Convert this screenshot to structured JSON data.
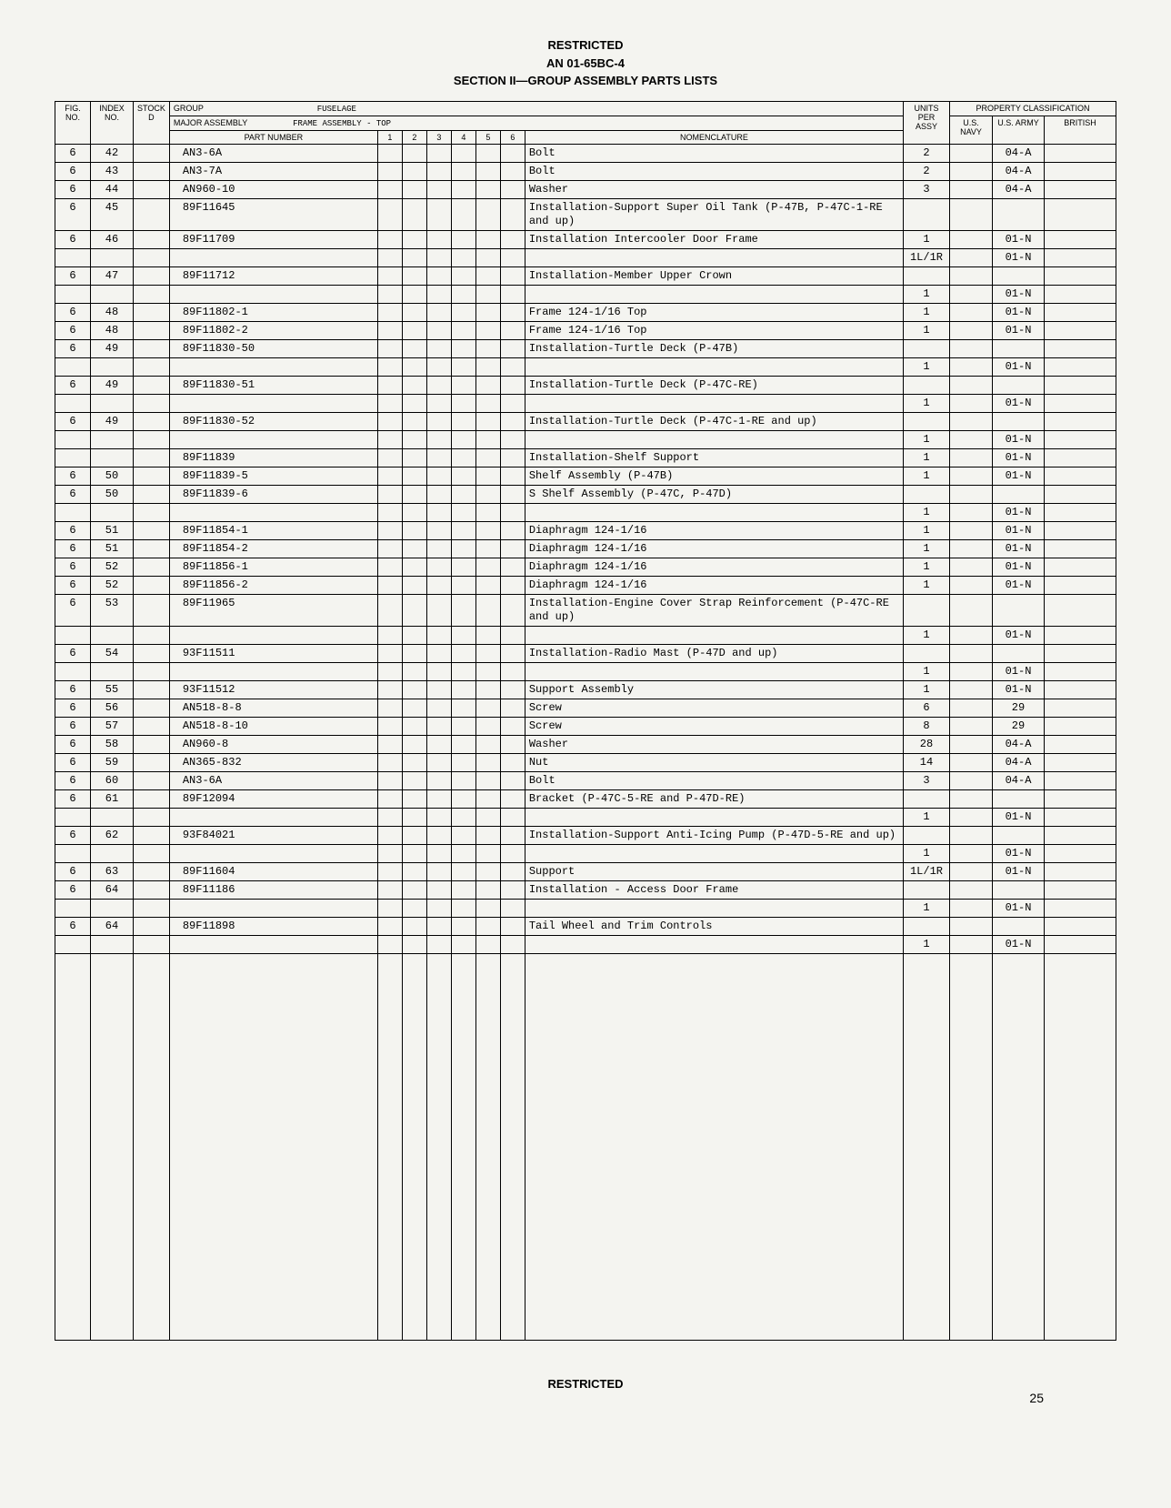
{
  "header": {
    "line1": "RESTRICTED",
    "line2": "AN 01-65BC-4",
    "line3": "SECTION II—GROUP ASSEMBLY PARTS LISTS"
  },
  "table_headers": {
    "group_label": "GROUP",
    "group_value": "FUSELAGE",
    "property_class": "PROPERTY CLASSIFICATION",
    "major_assembly_label": "MAJOR ASSEMBLY",
    "major_assembly_value": "FRAME ASSEMBLY - TOP",
    "fig": "FIG. NO.",
    "index": "INDEX NO.",
    "stock": "STOCK D",
    "part_number": "PART NUMBER",
    "c1": "1",
    "c2": "2",
    "c3": "3",
    "c4": "4",
    "c5": "5",
    "c6": "6",
    "nomenclature": "NOMENCLATURE",
    "units": "UNITS PER ASSY",
    "navy": "U.S. NAVY",
    "army": "U.S. ARMY",
    "british": "BRITISH"
  },
  "rows": [
    {
      "fig": "6",
      "idx": "42",
      "pn": "AN3-6A",
      "nom": "Bolt",
      "units": "2",
      "army": "04-A"
    },
    {
      "fig": "6",
      "idx": "43",
      "pn": "AN3-7A",
      "nom": "Bolt",
      "units": "2",
      "army": "04-A"
    },
    {
      "fig": "6",
      "idx": "44",
      "pn": "AN960-10",
      "nom": "Washer",
      "units": "3",
      "army": "04-A"
    },
    {
      "fig": "6",
      "idx": "45",
      "pn": "89F11645",
      "nom": "Installation-Support Super Oil Tank (P-47B, P-47C-1-RE and up)",
      "units": "",
      "army": ""
    },
    {
      "fig": "6",
      "idx": "46",
      "pn": "89F11709",
      "nom": "Installation Intercooler Door Frame",
      "units": "1",
      "army": "01-N"
    },
    {
      "fig": "",
      "idx": "",
      "pn": "",
      "nom": "",
      "units": "1L/1R",
      "army": "01-N"
    },
    {
      "fig": "6",
      "idx": "47",
      "pn": "89F11712",
      "nom": "Installation-Member Upper Crown",
      "units": "",
      "army": ""
    },
    {
      "fig": "",
      "idx": "",
      "pn": "",
      "nom": "",
      "units": "1",
      "army": "01-N"
    },
    {
      "fig": "6",
      "idx": "48",
      "pn": "89F11802-1",
      "nom": "Frame 124-1/16 Top",
      "units": "1",
      "army": "01-N"
    },
    {
      "fig": "6",
      "idx": "48",
      "pn": "89F11802-2",
      "nom": "Frame 124-1/16 Top",
      "units": "1",
      "army": "01-N"
    },
    {
      "fig": "6",
      "idx": "49",
      "pn": "89F11830-50",
      "nom": "Installation-Turtle Deck (P-47B)",
      "units": "",
      "army": ""
    },
    {
      "fig": "",
      "idx": "",
      "pn": "",
      "nom": "",
      "units": "1",
      "army": "01-N"
    },
    {
      "fig": "6",
      "idx": "49",
      "pn": "89F11830-51",
      "nom": "Installation-Turtle Deck (P-47C-RE)",
      "units": "",
      "army": ""
    },
    {
      "fig": "",
      "idx": "",
      "pn": "",
      "nom": "",
      "units": "1",
      "army": "01-N"
    },
    {
      "fig": "6",
      "idx": "49",
      "pn": "89F11830-52",
      "nom": "Installation-Turtle Deck (P-47C-1-RE and up)",
      "units": "",
      "army": ""
    },
    {
      "fig": "",
      "idx": "",
      "pn": "",
      "nom": "",
      "units": "1",
      "army": "01-N"
    },
    {
      "fig": "",
      "idx": "",
      "pn": "89F11839",
      "nom": "Installation-Shelf Support",
      "units": "1",
      "army": "01-N"
    },
    {
      "fig": "6",
      "idx": "50",
      "pn": "89F11839-5",
      "nom": "Shelf Assembly (P-47B)",
      "units": "1",
      "army": "01-N"
    },
    {
      "fig": "6",
      "idx": "50",
      "pn": "89F11839-6",
      "nom": "S Shelf Assembly (P-47C, P-47D)",
      "units": "",
      "army": ""
    },
    {
      "fig": "",
      "idx": "",
      "pn": "",
      "nom": "",
      "units": "1",
      "army": "01-N"
    },
    {
      "fig": "6",
      "idx": "51",
      "pn": "89F11854-1",
      "nom": "Diaphragm 124-1/16",
      "units": "1",
      "army": "01-N"
    },
    {
      "fig": "6",
      "idx": "51",
      "pn": "89F11854-2",
      "nom": "Diaphragm 124-1/16",
      "units": "1",
      "army": "01-N"
    },
    {
      "fig": "6",
      "idx": "52",
      "pn": "89F11856-1",
      "nom": "Diaphragm 124-1/16",
      "units": "1",
      "army": "01-N"
    },
    {
      "fig": "6",
      "idx": "52",
      "pn": "89F11856-2",
      "nom": "Diaphragm 124-1/16",
      "units": "1",
      "army": "01-N"
    },
    {
      "fig": "6",
      "idx": "53",
      "pn": "89F11965",
      "nom": "Installation-Engine Cover Strap Reinforcement (P-47C-RE and up)",
      "units": "",
      "army": ""
    },
    {
      "fig": "",
      "idx": "",
      "pn": "",
      "nom": "",
      "units": "1",
      "army": "01-N"
    },
    {
      "fig": "6",
      "idx": "54",
      "pn": "93F11511",
      "nom": "Installation-Radio Mast (P-47D and up)",
      "units": "",
      "army": ""
    },
    {
      "fig": "",
      "idx": "",
      "pn": "",
      "nom": "",
      "units": "1",
      "army": "01-N"
    },
    {
      "fig": "6",
      "idx": "55",
      "pn": "93F11512",
      "nom": "Support Assembly",
      "units": "1",
      "army": "01-N"
    },
    {
      "fig": "6",
      "idx": "56",
      "pn": "AN518-8-8",
      "nom": "Screw",
      "units": "6",
      "army": "29"
    },
    {
      "fig": "6",
      "idx": "57",
      "pn": "AN518-8-10",
      "nom": "Screw",
      "units": "8",
      "army": "29"
    },
    {
      "fig": "6",
      "idx": "58",
      "pn": "AN960-8",
      "nom": "Washer",
      "units": "28",
      "army": "04-A"
    },
    {
      "fig": "6",
      "idx": "59",
      "pn": "AN365-832",
      "nom": "Nut",
      "units": "14",
      "army": "04-A"
    },
    {
      "fig": "6",
      "idx": "60",
      "pn": "AN3-6A",
      "nom": "Bolt",
      "units": "3",
      "army": "04-A"
    },
    {
      "fig": "6",
      "idx": "61",
      "pn": "89F12094",
      "nom": "Bracket (P-47C-5-RE and P-47D-RE)",
      "units": "",
      "army": ""
    },
    {
      "fig": "",
      "idx": "",
      "pn": "",
      "nom": "",
      "units": "1",
      "army": "01-N"
    },
    {
      "fig": "6",
      "idx": "62",
      "pn": "93F84021",
      "nom": "Installation-Support Anti-Icing Pump (P-47D-5-RE and up)",
      "units": "",
      "army": ""
    },
    {
      "fig": "",
      "idx": "",
      "pn": "",
      "nom": "",
      "units": "1",
      "army": "01-N"
    },
    {
      "fig": "6",
      "idx": "63",
      "pn": "89F11604",
      "nom": "Support",
      "units": "1L/1R",
      "army": "01-N"
    },
    {
      "fig": "6",
      "idx": "64",
      "pn": "89F11186",
      "nom": "Installation - Access Door Frame",
      "units": "",
      "army": ""
    },
    {
      "fig": "",
      "idx": "",
      "pn": "",
      "nom": "",
      "units": "1",
      "army": "01-N"
    },
    {
      "fig": "6",
      "idx": "64",
      "pn": "89F11898",
      "nom": "Tail Wheel and Trim Controls",
      "units": "",
      "army": ""
    },
    {
      "fig": "",
      "idx": "",
      "pn": "",
      "nom": "",
      "units": "1",
      "army": "01-N"
    }
  ],
  "footer": {
    "restricted": "RESTRICTED",
    "page": "25"
  },
  "style": {
    "font_mono": "Courier New",
    "font_sans": "Arial",
    "bg": "#f4f4f0",
    "fg": "#000000",
    "border": "#000000"
  }
}
